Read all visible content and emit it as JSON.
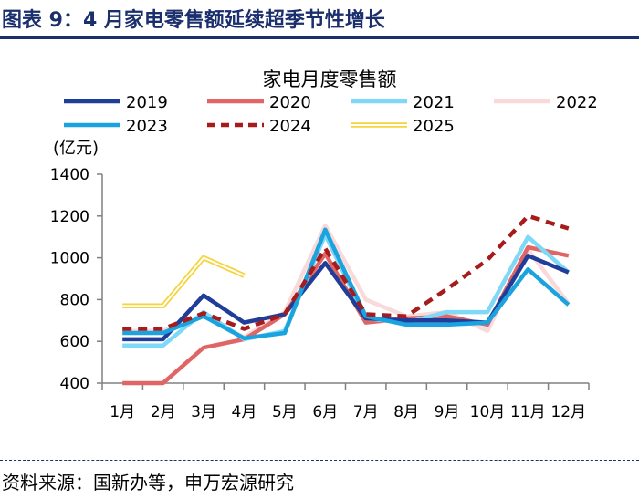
{
  "header": {
    "figure_title": "图表 9：4 月家电零售额延续超季节性增长"
  },
  "footer": {
    "source": "资料来源：国新办等，申万宏源研究"
  },
  "colors": {
    "title": "#1b2f6d",
    "2019": "#1f3d99",
    "2020": "#e06666",
    "2021": "#7fd8f5",
    "2022": "#f9d9d9",
    "2023": "#1aa3de",
    "2024": "#a61c1c",
    "2025": "#f5d33a"
  },
  "chart_data": {
    "type": "line",
    "title": "家电月度零售额",
    "ylabel": "(亿元)",
    "xlabel": "",
    "ylim": [
      400,
      1400
    ],
    "yticks": [
      "400",
      "600",
      "800",
      "1000",
      "1200",
      "1400"
    ],
    "categories": [
      "1月",
      "2月",
      "3月",
      "4月",
      "5月",
      "6月",
      "7月",
      "8月",
      "9月",
      "10月",
      "11月",
      "12月"
    ],
    "legend_position": "top",
    "series": [
      {
        "name": "2019",
        "values": [
          610,
          610,
          820,
          690,
          730,
          975,
          710,
          700,
          700,
          690,
          1010,
          930
        ]
      },
      {
        "name": "2020",
        "values": [
          400,
          400,
          570,
          610,
          730,
          1020,
          690,
          710,
          720,
          680,
          1050,
          1010
        ]
      },
      {
        "name": "2021",
        "values": [
          580,
          580,
          740,
          610,
          650,
          1110,
          710,
          690,
          740,
          740,
          1100,
          930
        ]
      },
      {
        "name": "2022",
        "values": [
          650,
          650,
          720,
          620,
          740,
          1155,
          800,
          720,
          740,
          650,
          1040,
          780
        ]
      },
      {
        "name": "2023",
        "values": [
          640,
          640,
          720,
          615,
          640,
          1135,
          720,
          680,
          680,
          690,
          945,
          775
        ]
      },
      {
        "name": "2024",
        "values": [
          660,
          660,
          735,
          660,
          730,
          1045,
          730,
          720,
          850,
          990,
          1200,
          1140
        ]
      },
      {
        "name": "2025",
        "values": [
          770,
          770,
          1000,
          915,
          null,
          null,
          null,
          null,
          null,
          null,
          null,
          null
        ]
      }
    ]
  }
}
